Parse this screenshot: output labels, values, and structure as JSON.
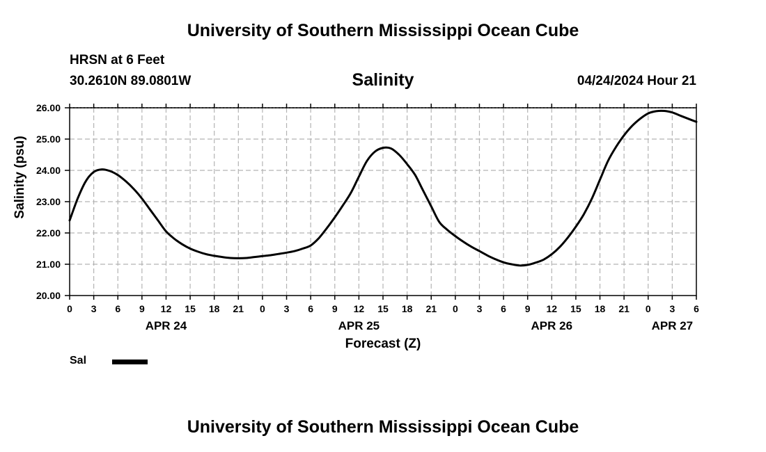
{
  "page": {
    "title_top": "University of Southern Mississippi Ocean Cube",
    "title_bottom": "University of Southern Mississippi Ocean Cube",
    "station": "HRSN at 6 Feet",
    "coords": "30.2610N  89.0801W",
    "date": "04/24/2024 Hour 21"
  },
  "chart_data": {
    "type": "line",
    "title": "Salinity",
    "xlabel": "Forecast (Z)",
    "ylabel": "Salinity (psu)",
    "ylim": [
      20,
      26
    ],
    "yticks": [
      "20.00",
      "21.00",
      "22.00",
      "23.00",
      "24.00",
      "25.00",
      "26.00"
    ],
    "xlim": [
      0,
      78
    ],
    "xticks": [
      "0",
      "3",
      "6",
      "9",
      "12",
      "15",
      "18",
      "21",
      "0",
      "3",
      "6",
      "9",
      "12",
      "15",
      "18",
      "21",
      "0",
      "3",
      "6",
      "9",
      "12",
      "15",
      "18",
      "21",
      "0",
      "3",
      "6"
    ],
    "day_labels": [
      {
        "label": "APR 24",
        "hour": 12
      },
      {
        "label": "APR 25",
        "hour": 36
      },
      {
        "label": "APR 26",
        "hour": 60
      },
      {
        "label": "APR 27",
        "hour": 75
      }
    ],
    "grid": true,
    "legend_position": "bottom-left",
    "series": [
      {
        "name": "Sal",
        "color": "#000000",
        "x": [
          0,
          1,
          2,
          3,
          4,
          5,
          6,
          7,
          8,
          9,
          10,
          11,
          12,
          13,
          14,
          15,
          16,
          17,
          18,
          19,
          20,
          21,
          22,
          23,
          24,
          25,
          26,
          27,
          28,
          29,
          30,
          31,
          32,
          33,
          34,
          35,
          36,
          37,
          38,
          39,
          40,
          41,
          42,
          43,
          44,
          45,
          46,
          47,
          48,
          49,
          50,
          51,
          52,
          53,
          54,
          55,
          56,
          57,
          58,
          59,
          60,
          61,
          62,
          63,
          64,
          65,
          66,
          67,
          68,
          69,
          70,
          71,
          72,
          73,
          74,
          75,
          76,
          77,
          78
        ],
        "values": [
          22.4,
          23.1,
          23.65,
          23.95,
          24.03,
          23.98,
          23.85,
          23.65,
          23.4,
          23.1,
          22.75,
          22.4,
          22.05,
          21.82,
          21.64,
          21.5,
          21.4,
          21.32,
          21.27,
          21.23,
          21.2,
          21.19,
          21.2,
          21.23,
          21.26,
          21.29,
          21.33,
          21.37,
          21.42,
          21.5,
          21.6,
          21.83,
          22.15,
          22.5,
          22.88,
          23.28,
          23.8,
          24.3,
          24.6,
          24.72,
          24.7,
          24.5,
          24.2,
          23.85,
          23.35,
          22.85,
          22.35,
          22.1,
          21.9,
          21.72,
          21.56,
          21.42,
          21.28,
          21.16,
          21.06,
          21.0,
          20.96,
          20.98,
          21.05,
          21.15,
          21.32,
          21.55,
          21.85,
          22.2,
          22.6,
          23.1,
          23.7,
          24.3,
          24.75,
          25.12,
          25.42,
          25.65,
          25.82,
          25.89,
          25.9,
          25.85,
          25.75,
          25.65,
          25.55
        ]
      }
    ]
  }
}
